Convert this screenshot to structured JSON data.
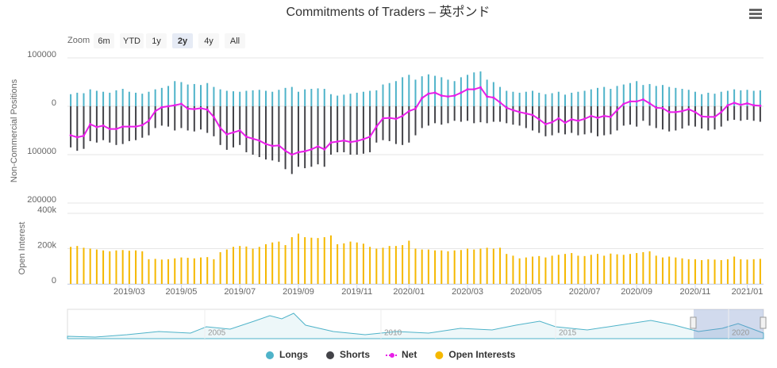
{
  "chart_data": [
    {
      "type": "bar",
      "title": "Commitments of Traders – 英ポンド",
      "ylabel": "Non-Commercial Positions",
      "ylim": [
        -200000,
        100000
      ],
      "yticks": [
        100000,
        0,
        {
          "value": -100000,
          "label": "100000"
        },
        {
          "value": -200000,
          "label": "200000"
        }
      ],
      "grid": true,
      "series": [
        {
          "name": "Longs",
          "type": "bar",
          "color": "#4fb3c9",
          "values": [
            25000,
            28000,
            27000,
            35000,
            32000,
            30000,
            28000,
            33000,
            36000,
            30000,
            28000,
            26000,
            30000,
            35000,
            38000,
            42000,
            52000,
            50000,
            45000,
            46000,
            44000,
            48000,
            40000,
            35000,
            32000,
            31000,
            30000,
            32000,
            33000,
            34000,
            32000,
            30000,
            34000,
            38000,
            40000,
            30000,
            35000,
            36000,
            37000,
            36000,
            25000,
            22000,
            24000,
            26000,
            28000,
            30000,
            32000,
            33000,
            45000,
            48000,
            52000,
            60000,
            65000,
            55000,
            62000,
            66000,
            63000,
            60000,
            55000,
            52000,
            60000,
            65000,
            70000,
            72000,
            55000,
            50000,
            40000,
            32000,
            30000,
            28000,
            30000,
            32000,
            28000,
            25000,
            27000,
            30000,
            24000,
            28000,
            30000,
            32000,
            35000,
            38000,
            40000,
            36000,
            42000,
            45000,
            48000,
            52000,
            44000,
            46000,
            42000,
            44000,
            40000,
            38000,
            36000,
            34000,
            30000,
            25000,
            28000,
            26000,
            30000,
            32000,
            35000,
            33000,
            34000,
            32000,
            33000
          ]
        },
        {
          "name": "Shorts",
          "type": "bar",
          "color": "#434348",
          "values": [
            -85000,
            -92000,
            -88000,
            -72000,
            -75000,
            -70000,
            -75000,
            -80000,
            -78000,
            -72000,
            -70000,
            -65000,
            -60000,
            -45000,
            -40000,
            -42000,
            -50000,
            -45000,
            -50000,
            -52000,
            -48000,
            -55000,
            -62000,
            -80000,
            -90000,
            -85000,
            -80000,
            -95000,
            -100000,
            -105000,
            -110000,
            -112000,
            -115000,
            -130000,
            -140000,
            -125000,
            -128000,
            -125000,
            -120000,
            -125000,
            -100000,
            -95000,
            -95000,
            -100000,
            -100000,
            -98000,
            -95000,
            -75000,
            -70000,
            -72000,
            -78000,
            -80000,
            -75000,
            -60000,
            -45000,
            -40000,
            -35000,
            -38000,
            -35000,
            -30000,
            -32000,
            -30000,
            -35000,
            -33000,
            -35000,
            -32000,
            -32000,
            -35000,
            -38000,
            -40000,
            -45000,
            -50000,
            -55000,
            -62000,
            -60000,
            -55000,
            -58000,
            -55000,
            -60000,
            -58000,
            -55000,
            -62000,
            -60000,
            -58000,
            -50000,
            -40000,
            -38000,
            -42000,
            -30000,
            -40000,
            -45000,
            -48000,
            -52000,
            -50000,
            -46000,
            -40000,
            -42000,
            -46000,
            -50000,
            -48000,
            -42000,
            -30000,
            -28000,
            -30000,
            -28000,
            -30000,
            -32000
          ]
        },
        {
          "name": "Net",
          "type": "line",
          "color": "#e81ee8",
          "values": [
            -60000,
            -64000,
            -61000,
            -37000,
            -43000,
            -40000,
            -47000,
            -47000,
            -42000,
            -42000,
            -42000,
            -39000,
            -30000,
            -10000,
            -2000,
            0,
            2000,
            5000,
            -5000,
            -6000,
            -4000,
            -7000,
            -22000,
            -45000,
            -58000,
            -54000,
            -50000,
            -63000,
            -67000,
            -71000,
            -78000,
            -82000,
            -81000,
            -92000,
            -100000,
            -95000,
            -93000,
            -89000,
            -83000,
            -89000,
            -75000,
            -73000,
            -71000,
            -74000,
            -72000,
            -68000,
            -63000,
            -42000,
            -25000,
            -24000,
            -26000,
            -20000,
            -10000,
            -5000,
            17000,
            26000,
            28000,
            22000,
            20000,
            22000,
            28000,
            35000,
            35000,
            39000,
            20000,
            18000,
            8000,
            -3000,
            -8000,
            -12000,
            -15000,
            -18000,
            -27000,
            -37000,
            -33000,
            -25000,
            -34000,
            -27000,
            -30000,
            -26000,
            -20000,
            -24000,
            -20000,
            -22000,
            -8000,
            5000,
            10000,
            10000,
            14000,
            6000,
            -3000,
            -4000,
            -12000,
            -12000,
            -10000,
            -6000,
            -12000,
            -21000,
            -22000,
            -22000,
            -12000,
            2000,
            7000,
            3000,
            6000,
            2000,
            1000
          ]
        }
      ]
    },
    {
      "type": "bar",
      "ylabel": "Open Interest",
      "ylim": [
        0,
        400000
      ],
      "yticks": [
        {
          "value": 400000,
          "label": "400k"
        },
        {
          "value": 200000,
          "label": "200k"
        },
        0
      ],
      "grid": true,
      "categories": [
        null,
        null,
        null,
        null,
        null,
        null,
        null,
        null,
        null,
        "2019/03",
        null,
        null,
        null,
        null,
        null,
        null,
        null,
        "2019/05",
        null,
        null,
        null,
        null,
        null,
        null,
        null,
        null,
        "2019/07",
        null,
        null,
        null,
        null,
        null,
        null,
        null,
        null,
        "2019/09",
        null,
        null,
        null,
        null,
        null,
        null,
        null,
        null,
        "2019/11",
        null,
        null,
        null,
        null,
        null,
        null,
        null,
        "2020/01",
        null,
        null,
        null,
        null,
        null,
        null,
        null,
        null,
        "2020/03",
        null,
        null,
        null,
        null,
        null,
        null,
        null,
        null,
        "2020/05",
        null,
        null,
        null,
        null,
        null,
        null,
        null,
        null,
        "2020/07",
        null,
        null,
        null,
        null,
        null,
        null,
        null,
        "2020/09",
        null,
        null,
        null,
        null,
        null,
        null,
        null,
        null,
        "2020/11",
        null,
        null,
        null,
        null,
        null,
        null,
        null,
        "2021/01",
        null,
        null
      ],
      "series": [
        {
          "name": "Open Interests",
          "type": "bar",
          "color": "#f5b800",
          "values": [
            210000,
            215000,
            205000,
            200000,
            195000,
            190000,
            185000,
            190000,
            192000,
            188000,
            190000,
            185000,
            140000,
            142000,
            138000,
            140000,
            145000,
            150000,
            148000,
            145000,
            150000,
            152000,
            140000,
            180000,
            195000,
            210000,
            215000,
            212000,
            200000,
            210000,
            225000,
            235000,
            240000,
            220000,
            265000,
            285000,
            265000,
            262000,
            260000,
            265000,
            275000,
            225000,
            230000,
            240000,
            235000,
            228000,
            210000,
            200000,
            205000,
            215000,
            215000,
            220000,
            245000,
            200000,
            195000,
            195000,
            190000,
            190000,
            185000,
            190000,
            192000,
            200000,
            195000,
            200000,
            205000,
            200000,
            205000,
            170000,
            160000,
            145000,
            150000,
            155000,
            158000,
            150000,
            160000,
            165000,
            170000,
            175000,
            160000,
            158000,
            165000,
            170000,
            160000,
            172000,
            168000,
            165000,
            170000,
            175000,
            180000,
            185000,
            160000,
            150000,
            155000,
            150000,
            145000,
            140000,
            140000,
            135000,
            140000,
            138000,
            135000,
            140000,
            155000,
            140000,
            138000,
            140000,
            142000
          ]
        }
      ]
    }
  ],
  "range_selector": {
    "label": "Zoom",
    "buttons": [
      "6m",
      "YTD",
      "1y",
      "2y",
      "4y",
      "All"
    ],
    "selected": 3
  },
  "navigator": {
    "labels": [
      "2005",
      "2010",
      "2015",
      "2020"
    ]
  }
}
